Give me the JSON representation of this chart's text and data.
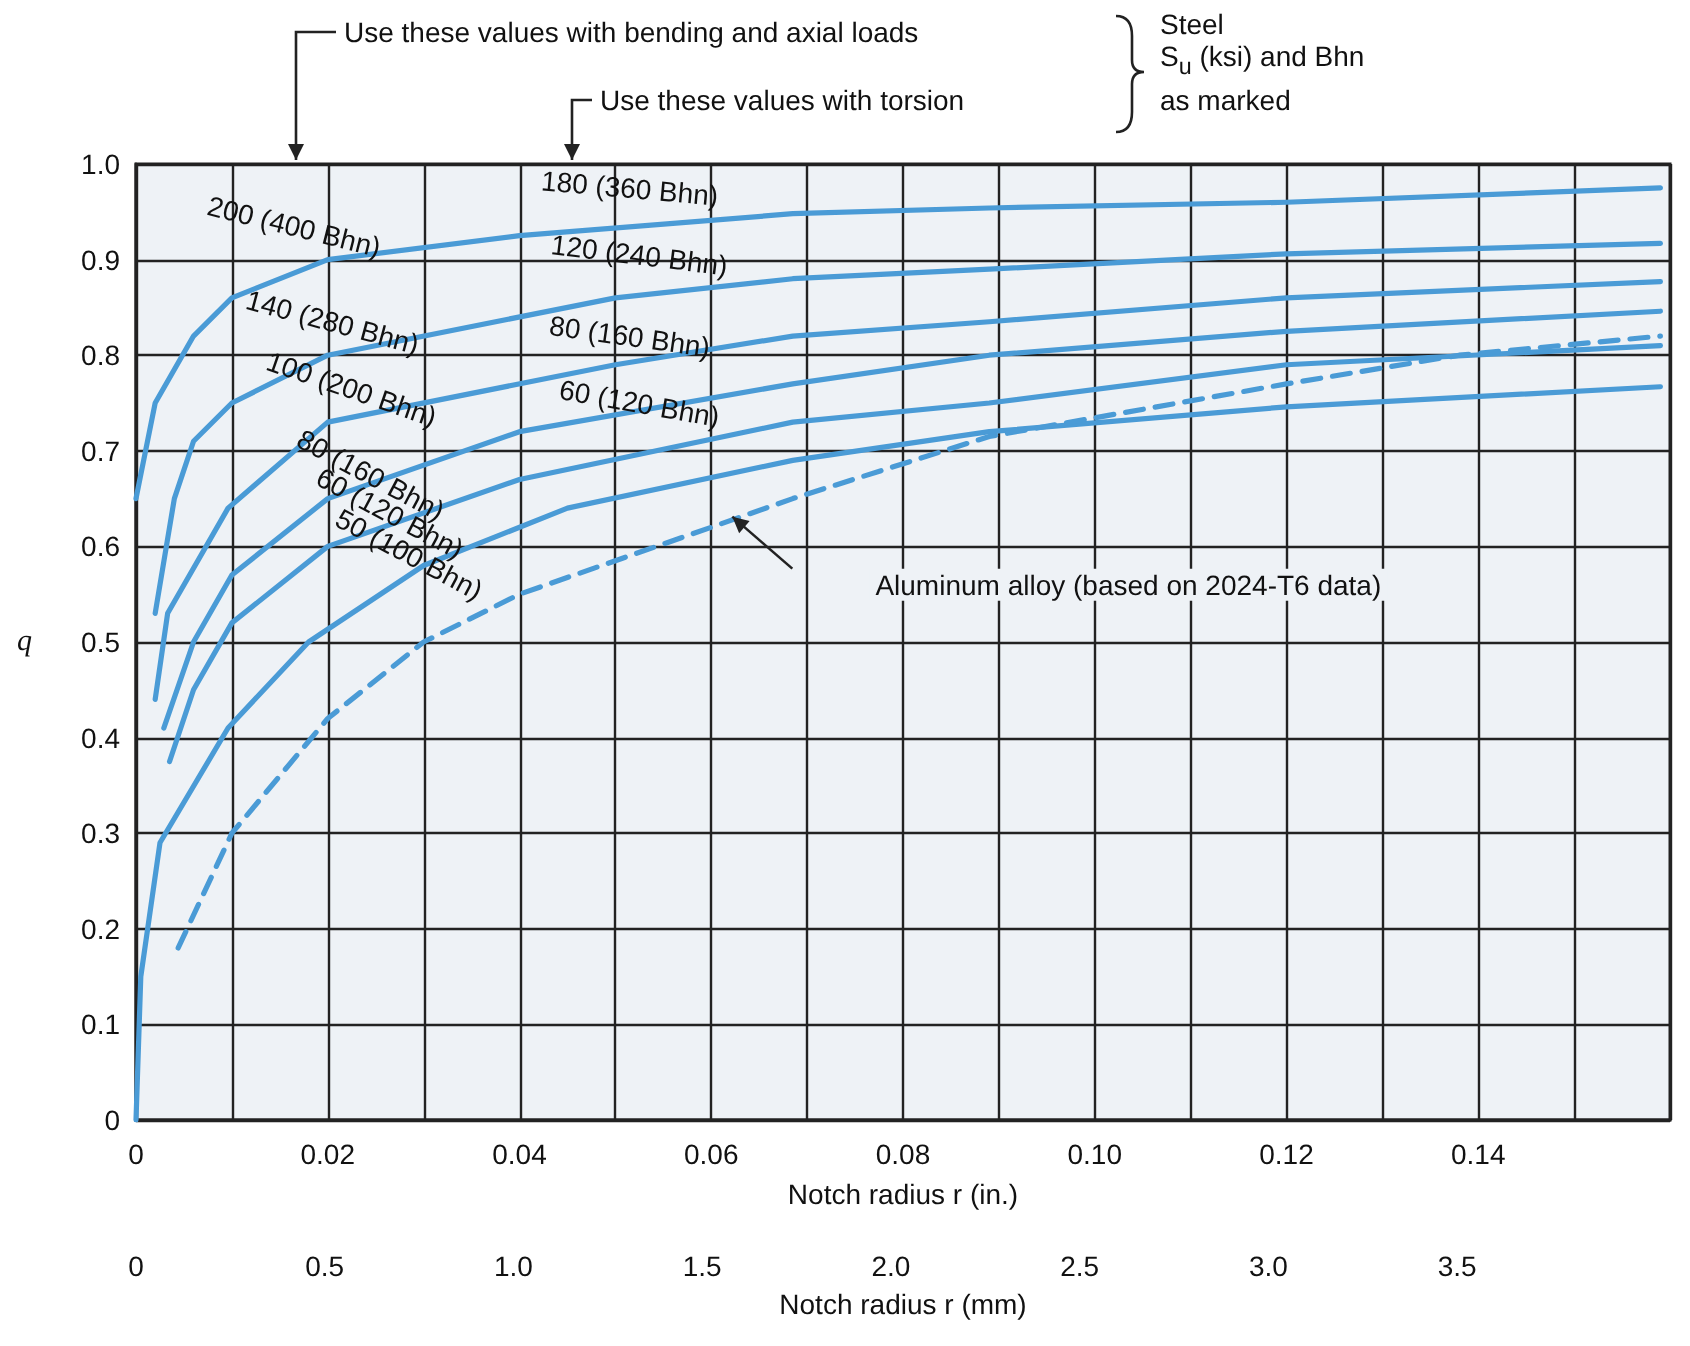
{
  "chart_data": {
    "type": "line",
    "xlabel": "Notch radius r (in.)",
    "ylabel": "q",
    "x2label": "Notch radius r (mm)",
    "xlim": [
      0,
      0.16
    ],
    "xticks": [
      0,
      {
        "value": 0.01,
        "label": null
      },
      0.02,
      {
        "value": 0.03,
        "label": null
      },
      0.04,
      {
        "value": 0.05,
        "label": null
      },
      0.06,
      {
        "value": 0.07,
        "label": null
      },
      0.08,
      {
        "value": 0.09,
        "label": null
      },
      {
        "value": 0.1,
        "label": "0.10"
      },
      {
        "value": 0.11,
        "label": null
      },
      0.12,
      {
        "value": 0.13,
        "label": null
      },
      0.14,
      {
        "value": 0.15,
        "label": null
      },
      {
        "value": 0.16,
        "label": null
      }
    ],
    "x2lim": [
      0,
      4.064
    ],
    "x2ticks": [
      0,
      0.5,
      {
        "value": 1,
        "label": "1.0"
      },
      1.5,
      {
        "value": 2,
        "label": "2.0"
      },
      2.5,
      {
        "value": 3,
        "label": "3.0"
      },
      3.5
    ],
    "ylim": [
      0,
      1
    ],
    "yticks": [
      0,
      0.1,
      0.2,
      0.3,
      0.4,
      0.5,
      0.6,
      0.7,
      0.8,
      0.9,
      {
        "value": 1,
        "label": "1.0"
      }
    ],
    "grid": true,
    "marker": "none",
    "series": [
      {
        "color": "#4a9bd6",
        "line_style": "solid",
        "x": [
          0,
          0.002,
          0.006,
          0.01,
          0.02,
          0.04,
          0.0685,
          0.089,
          0.12,
          0.159
        ],
        "values": [
          0.65,
          0.75,
          0.82,
          0.86,
          0.9,
          0.925,
          0.948,
          0.954,
          0.96,
          0.975
        ]
      },
      {
        "color": "#4a9bd6",
        "line_style": "solid",
        "x": [
          0.002,
          0.004,
          0.006,
          0.01,
          0.02,
          0.05,
          0.0685,
          0.089,
          0.12,
          0.159
        ],
        "values": [
          0.53,
          0.65,
          0.71,
          0.75,
          0.8,
          0.86,
          0.88,
          0.89,
          0.906,
          0.917
        ]
      },
      {
        "color": "#4a9bd6",
        "line_style": "solid",
        "x": [
          0.002,
          0.0033,
          0.0096,
          0.02,
          0.05,
          0.0685,
          0.089,
          0.12,
          0.159
        ],
        "values": [
          0.44,
          0.53,
          0.64,
          0.73,
          0.79,
          0.82,
          0.835,
          0.86,
          0.877
        ]
      },
      {
        "color": "#4a9bd6",
        "line_style": "solid",
        "x": [
          0.0029,
          0.006,
          0.01,
          0.02,
          0.04,
          0.0685,
          0.089,
          0.12,
          0.159
        ],
        "values": [
          0.41,
          0.5,
          0.57,
          0.65,
          0.72,
          0.77,
          0.8,
          0.825,
          0.846
        ]
      },
      {
        "color": "#4a9bd6",
        "line_style": "solid",
        "x": [
          0.0035,
          0.006,
          0.01,
          0.02,
          0.04,
          0.0685,
          0.089,
          0.12,
          0.159
        ],
        "values": [
          0.375,
          0.45,
          0.52,
          0.6,
          0.67,
          0.73,
          0.75,
          0.79,
          0.81
        ]
      },
      {
        "color": "#4a9bd6",
        "line_style": "solid",
        "x": [
          0,
          0.0005,
          0.0025,
          0.0096,
          0.018,
          0.03,
          0.045,
          0.0685,
          0.089,
          0.12,
          0.159
        ],
        "values": [
          0,
          0.15,
          0.29,
          0.41,
          0.5,
          0.58,
          0.64,
          0.69,
          0.72,
          0.746,
          0.767
        ]
      },
      {
        "color": "#4a9bd6",
        "line_style": "dashed",
        "x": [
          0.0044,
          0.01,
          0.02,
          0.03,
          0.04,
          0.06,
          0.0685,
          0.089,
          0.12,
          0.138,
          0.159
        ],
        "values": [
          0.18,
          0.3,
          0.42,
          0.5,
          0.55,
          0.62,
          0.65,
          0.715,
          0.77,
          0.8,
          0.82
        ]
      }
    ],
    "annotations": [
      "200 (400 Bhn)",
      "180 (360 Bhn)",
      "140 (280 Bhn)",
      "120 (240 Bhn)",
      "100 (200 Bhn)",
      "80 (160 Bhn)",
      "80 (160 Bhn)",
      "60 (120 Bhn)",
      "60 (120 Bhn)",
      "50 (100 Bhn)",
      "Aluminum alloy (based on 2024-T6 data)",
      "Use these values with bending and axial loads",
      "Use these values with torsion",
      "Steel\nS$_{u}$ (ksi) and Bhn\nas marked"
    ]
  }
}
